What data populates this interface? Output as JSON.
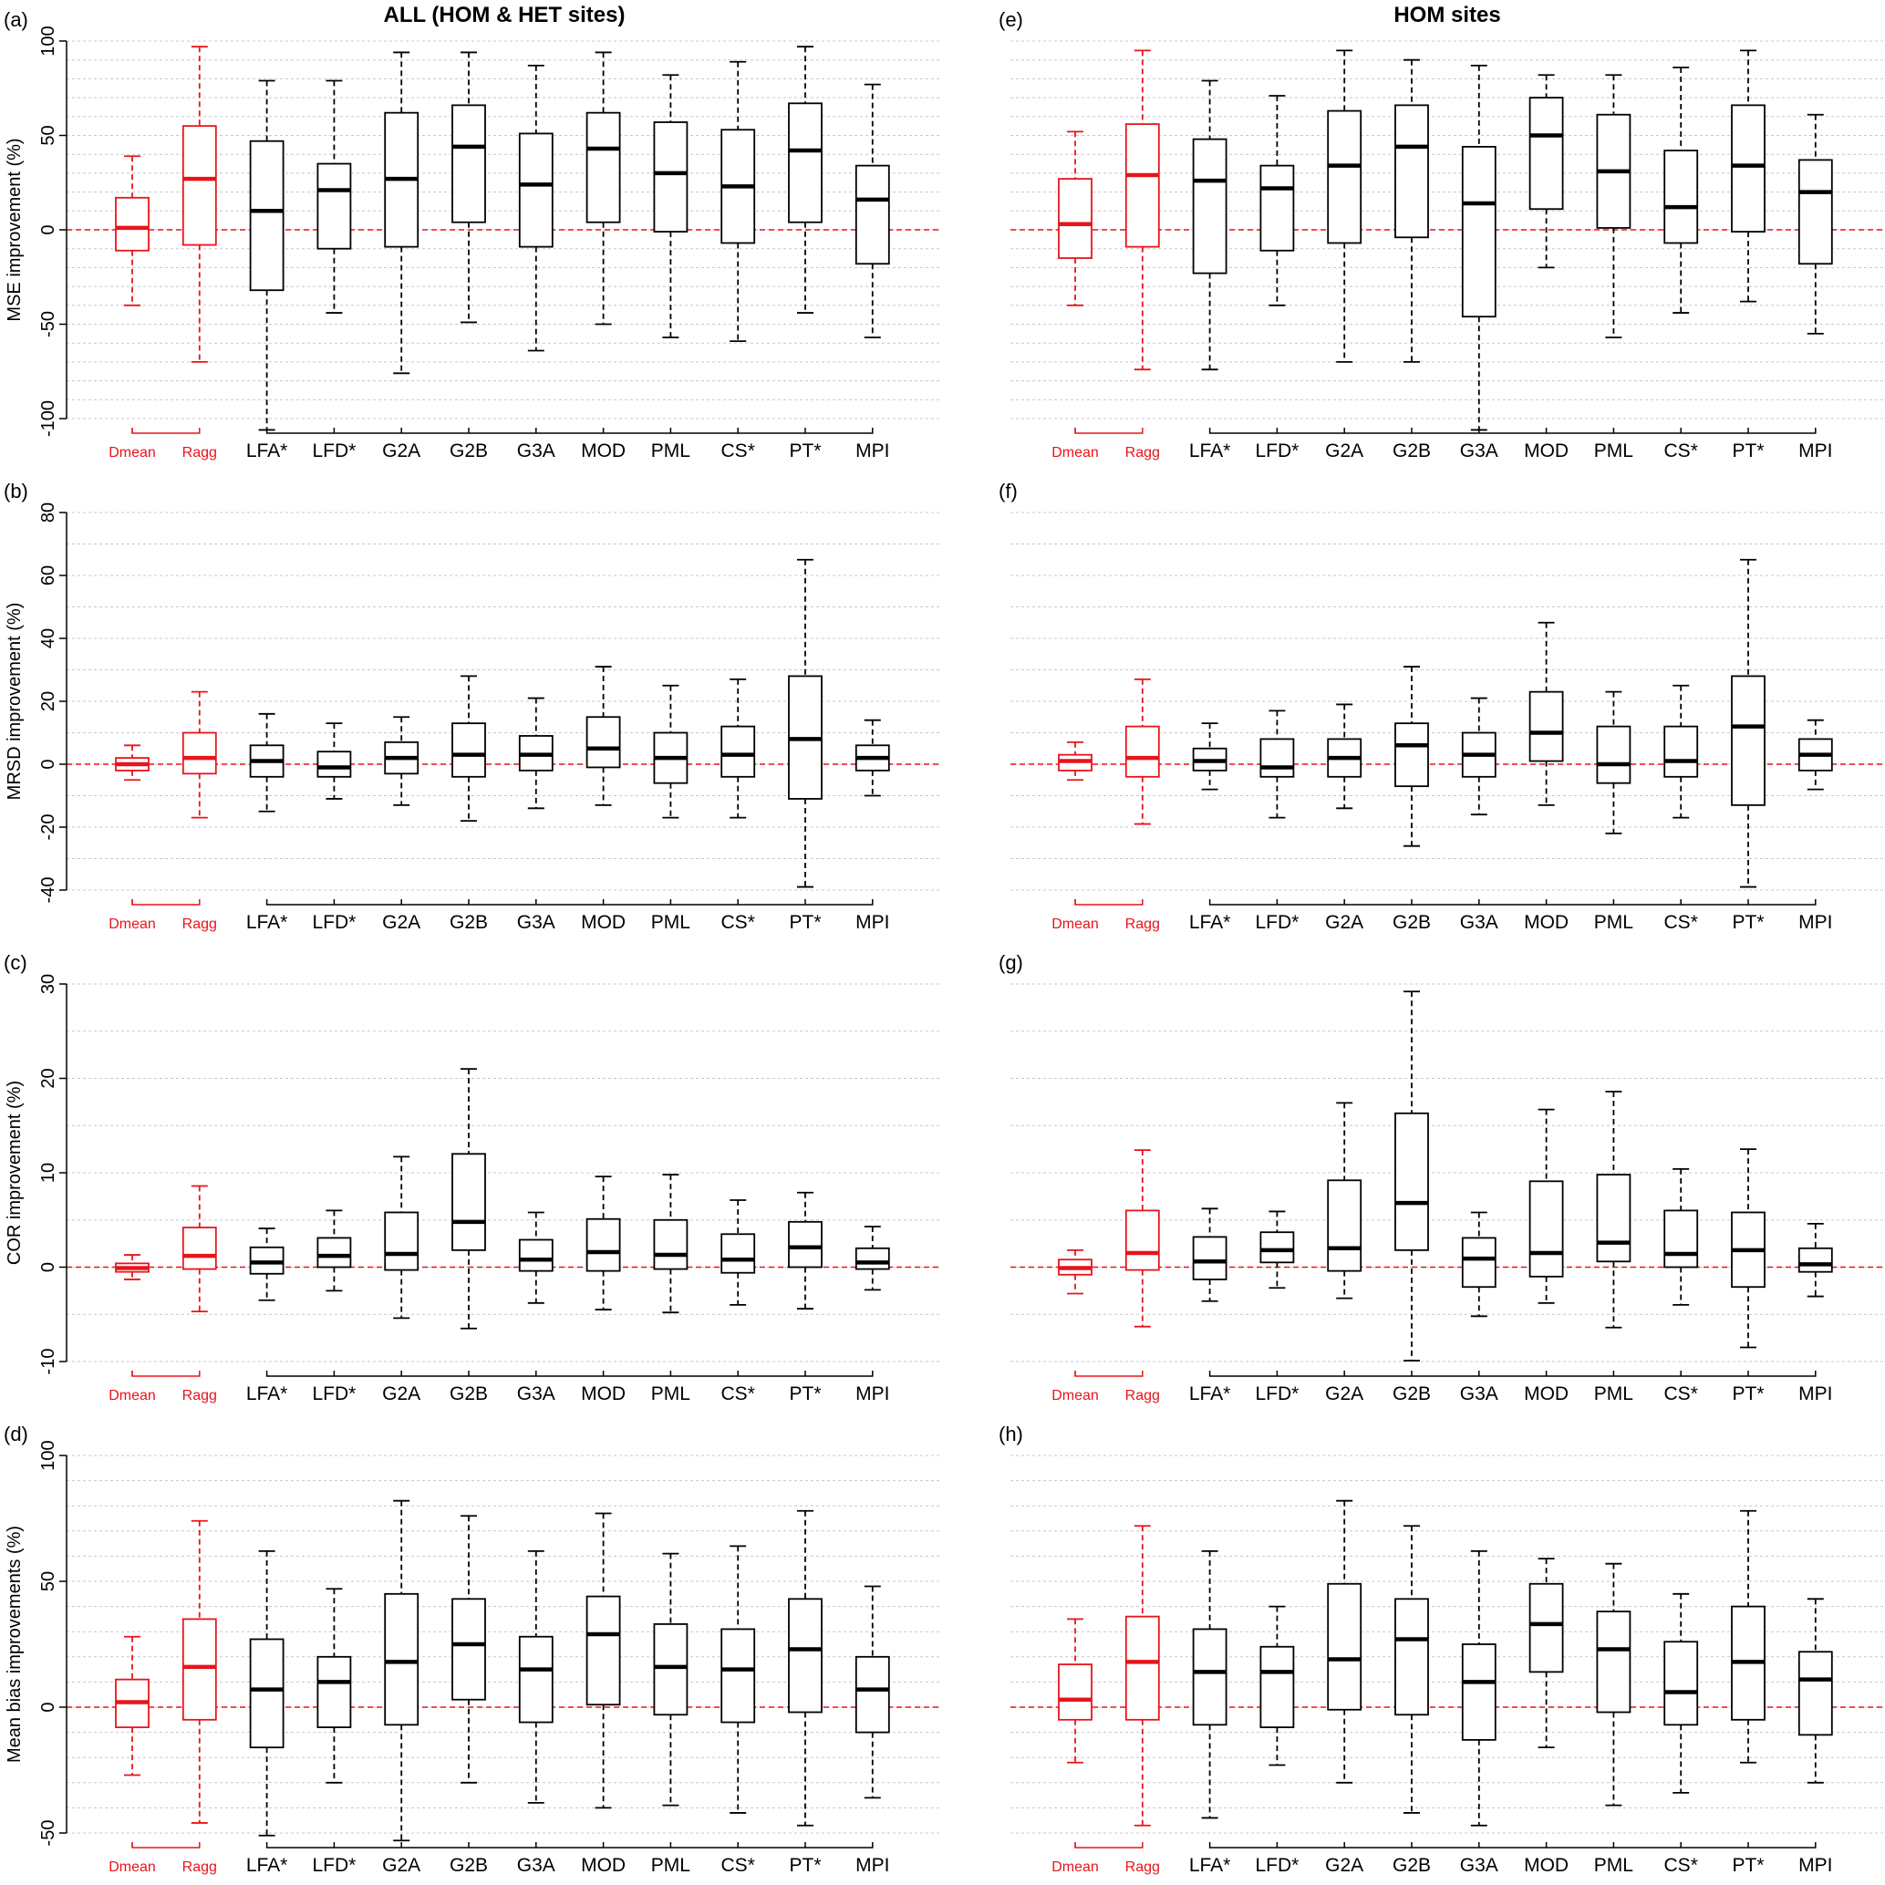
{
  "figure": {
    "left_title": "ALL (HOM & HET sites)",
    "right_title": "HOM sites",
    "colors": {
      "reference": "#e8141b",
      "method": "#000000",
      "zero_line": "#e8141b",
      "grid": "#c8c8c8"
    }
  },
  "chart_data": [
    {
      "panel": "(a)",
      "type": "boxplot",
      "ylabel": "MSE improvement (%)",
      "ylim": [
        -100,
        100
      ],
      "yticks": [
        -100,
        -50,
        0,
        50,
        100
      ],
      "grid": true,
      "reference_group": [
        "Dmean",
        "Ragg"
      ],
      "categories": [
        "Dmean",
        "Ragg",
        "LFA*",
        "LFD*",
        "G2A",
        "G2B",
        "G3A",
        "MOD",
        "PML",
        "CS*",
        "PT*",
        "MPI"
      ],
      "boxes": [
        {
          "min": -40,
          "q1": -11,
          "median": 1,
          "q3": 17,
          "max": 39
        },
        {
          "min": -70,
          "q1": -8,
          "median": 27,
          "q3": 55,
          "max": 97
        },
        {
          "min": -106,
          "q1": -32,
          "median": 10,
          "q3": 47,
          "max": 79
        },
        {
          "min": -44,
          "q1": -10,
          "median": 21,
          "q3": 35,
          "max": 79
        },
        {
          "min": -76,
          "q1": -9,
          "median": 27,
          "q3": 62,
          "max": 94
        },
        {
          "min": -49,
          "q1": 4,
          "median": 44,
          "q3": 66,
          "max": 94
        },
        {
          "min": -64,
          "q1": -9,
          "median": 24,
          "q3": 51,
          "max": 87
        },
        {
          "min": -50,
          "q1": 4,
          "median": 43,
          "q3": 62,
          "max": 94
        },
        {
          "min": -57,
          "q1": -1,
          "median": 30,
          "q3": 57,
          "max": 82
        },
        {
          "min": -59,
          "q1": -7,
          "median": 23,
          "q3": 53,
          "max": 89
        },
        {
          "min": -44,
          "q1": 4,
          "median": 42,
          "q3": 67,
          "max": 97
        },
        {
          "min": -57,
          "q1": -18,
          "median": 16,
          "q3": 34,
          "max": 77
        }
      ]
    },
    {
      "panel": "(b)",
      "type": "boxplot",
      "ylabel": "MRSD improvement (%)",
      "ylim": [
        -40,
        80
      ],
      "yticks": [
        -40,
        -20,
        0,
        20,
        40,
        60,
        80
      ],
      "grid": true,
      "reference_group": [
        "Dmean",
        "Ragg"
      ],
      "categories": [
        "Dmean",
        "Ragg",
        "LFA*",
        "LFD*",
        "G2A",
        "G2B",
        "G3A",
        "MOD",
        "PML",
        "CS*",
        "PT*",
        "MPI"
      ],
      "boxes": [
        {
          "min": -5,
          "q1": -2,
          "median": 0,
          "q3": 2,
          "max": 6
        },
        {
          "min": -17,
          "q1": -3,
          "median": 2,
          "q3": 10,
          "max": 23
        },
        {
          "min": -15,
          "q1": -4,
          "median": 1,
          "q3": 6,
          "max": 16
        },
        {
          "min": -11,
          "q1": -4,
          "median": -1,
          "q3": 4,
          "max": 13
        },
        {
          "min": -13,
          "q1": -3,
          "median": 2,
          "q3": 7,
          "max": 15
        },
        {
          "min": -18,
          "q1": -4,
          "median": 3,
          "q3": 13,
          "max": 28
        },
        {
          "min": -14,
          "q1": -2,
          "median": 3,
          "q3": 9,
          "max": 21
        },
        {
          "min": -13,
          "q1": -1,
          "median": 5,
          "q3": 15,
          "max": 31
        },
        {
          "min": -17,
          "q1": -6,
          "median": 2,
          "q3": 10,
          "max": 25
        },
        {
          "min": -17,
          "q1": -4,
          "median": 3,
          "q3": 12,
          "max": 27
        },
        {
          "min": -39,
          "q1": -11,
          "median": 8,
          "q3": 28,
          "max": 65
        },
        {
          "min": -10,
          "q1": -2,
          "median": 2,
          "q3": 6,
          "max": 14
        }
      ]
    },
    {
      "panel": "(c)",
      "type": "boxplot",
      "ylabel": "COR improvement (%)",
      "ylim": [
        -10,
        30
      ],
      "yticks": [
        -10,
        0,
        10,
        20,
        30
      ],
      "grid": true,
      "reference_group": [
        "Dmean",
        "Ragg"
      ],
      "categories": [
        "Dmean",
        "Ragg",
        "LFA*",
        "LFD*",
        "G2A",
        "G2B",
        "G3A",
        "MOD",
        "PML",
        "CS*",
        "PT*",
        "MPI"
      ],
      "boxes": [
        {
          "min": -1.3,
          "q1": -0.5,
          "median": -0.1,
          "q3": 0.4,
          "max": 1.3
        },
        {
          "min": -4.7,
          "q1": -0.2,
          "median": 1.2,
          "q3": 4.2,
          "max": 8.6
        },
        {
          "min": -3.5,
          "q1": -0.7,
          "median": 0.5,
          "q3": 2.1,
          "max": 4.1
        },
        {
          "min": -2.5,
          "q1": 0,
          "median": 1.2,
          "q3": 3.1,
          "max": 6
        },
        {
          "min": -5.4,
          "q1": -0.3,
          "median": 1.4,
          "q3": 5.8,
          "max": 11.7
        },
        {
          "min": -6.5,
          "q1": 1.8,
          "median": 4.8,
          "q3": 12,
          "max": 21
        },
        {
          "min": -3.8,
          "q1": -0.4,
          "median": 0.8,
          "q3": 2.9,
          "max": 5.8
        },
        {
          "min": -4.5,
          "q1": -0.4,
          "median": 1.6,
          "q3": 5.1,
          "max": 9.6
        },
        {
          "min": -4.8,
          "q1": -0.2,
          "median": 1.3,
          "q3": 5,
          "max": 9.8
        },
        {
          "min": -4,
          "q1": -0.6,
          "median": 0.8,
          "q3": 3.5,
          "max": 7.1
        },
        {
          "min": -4.4,
          "q1": 0,
          "median": 2.1,
          "q3": 4.8,
          "max": 7.9
        },
        {
          "min": -2.4,
          "q1": -0.2,
          "median": 0.5,
          "q3": 2,
          "max": 4.3
        }
      ]
    },
    {
      "panel": "(d)",
      "type": "boxplot",
      "ylabel": "Mean bias improvements (%)",
      "ylim": [
        -50,
        100
      ],
      "yticks": [
        -50,
        0,
        50,
        100
      ],
      "grid": true,
      "reference_group": [
        "Dmean",
        "Ragg"
      ],
      "categories": [
        "Dmean",
        "Ragg",
        "LFA*",
        "LFD*",
        "G2A",
        "G2B",
        "G3A",
        "MOD",
        "PML",
        "CS*",
        "PT*",
        "MPI"
      ],
      "boxes": [
        {
          "min": -27,
          "q1": -8,
          "median": 2,
          "q3": 11,
          "max": 28
        },
        {
          "min": -46,
          "q1": -5,
          "median": 16,
          "q3": 35,
          "max": 74
        },
        {
          "min": -51,
          "q1": -16,
          "median": 7,
          "q3": 27,
          "max": 62
        },
        {
          "min": -30,
          "q1": -8,
          "median": 10,
          "q3": 20,
          "max": 47
        },
        {
          "min": -53,
          "q1": -7,
          "median": 18,
          "q3": 45,
          "max": 82
        },
        {
          "min": -30,
          "q1": 3,
          "median": 25,
          "q3": 43,
          "max": 76
        },
        {
          "min": -38,
          "q1": -6,
          "median": 15,
          "q3": 28,
          "max": 62
        },
        {
          "min": -40,
          "q1": 1,
          "median": 29,
          "q3": 44,
          "max": 77
        },
        {
          "min": -39,
          "q1": -3,
          "median": 16,
          "q3": 33,
          "max": 61
        },
        {
          "min": -42,
          "q1": -6,
          "median": 15,
          "q3": 31,
          "max": 64
        },
        {
          "min": -47,
          "q1": -2,
          "median": 23,
          "q3": 43,
          "max": 78
        },
        {
          "min": -36,
          "q1": -10,
          "median": 7,
          "q3": 20,
          "max": 48
        }
      ]
    },
    {
      "panel": "(e)",
      "type": "boxplot",
      "ylabel": "",
      "ylim": [
        -100,
        100
      ],
      "yticks": [],
      "grid": true,
      "reference_group": [
        "Dmean",
        "Ragg"
      ],
      "categories": [
        "Dmean",
        "Ragg",
        "LFA*",
        "LFD*",
        "G2A",
        "G2B",
        "G3A",
        "MOD",
        "PML",
        "CS*",
        "PT*",
        "MPI"
      ],
      "boxes": [
        {
          "min": -40,
          "q1": -15,
          "median": 3,
          "q3": 27,
          "max": 52
        },
        {
          "min": -74,
          "q1": -9,
          "median": 29,
          "q3": 56,
          "max": 95
        },
        {
          "min": -74,
          "q1": -23,
          "median": 26,
          "q3": 48,
          "max": 79
        },
        {
          "min": -40,
          "q1": -11,
          "median": 22,
          "q3": 34,
          "max": 71
        },
        {
          "min": -70,
          "q1": -7,
          "median": 34,
          "q3": 63,
          "max": 95
        },
        {
          "min": -70,
          "q1": -4,
          "median": 44,
          "q3": 66,
          "max": 90
        },
        {
          "min": -106,
          "q1": -46,
          "median": 14,
          "q3": 44,
          "max": 87
        },
        {
          "min": -20,
          "q1": 11,
          "median": 50,
          "q3": 70,
          "max": 82
        },
        {
          "min": -57,
          "q1": 1,
          "median": 31,
          "q3": 61,
          "max": 82
        },
        {
          "min": -44,
          "q1": -7,
          "median": 12,
          "q3": 42,
          "max": 86
        },
        {
          "min": -38,
          "q1": -1,
          "median": 34,
          "q3": 66,
          "max": 95
        },
        {
          "min": -55,
          "q1": -18,
          "median": 20,
          "q3": 37,
          "max": 61
        }
      ]
    },
    {
      "panel": "(f)",
      "type": "boxplot",
      "ylabel": "",
      "ylim": [
        -40,
        80
      ],
      "yticks": [],
      "grid": true,
      "reference_group": [
        "Dmean",
        "Ragg"
      ],
      "categories": [
        "Dmean",
        "Ragg",
        "LFA*",
        "LFD*",
        "G2A",
        "G2B",
        "G3A",
        "MOD",
        "PML",
        "CS*",
        "PT*",
        "MPI"
      ],
      "boxes": [
        {
          "min": -5,
          "q1": -2,
          "median": 1,
          "q3": 3,
          "max": 7
        },
        {
          "min": -19,
          "q1": -4,
          "median": 2,
          "q3": 12,
          "max": 27
        },
        {
          "min": -8,
          "q1": -2,
          "median": 1,
          "q3": 5,
          "max": 13
        },
        {
          "min": -17,
          "q1": -4,
          "median": -1,
          "q3": 8,
          "max": 17
        },
        {
          "min": -14,
          "q1": -4,
          "median": 2,
          "q3": 8,
          "max": 19
        },
        {
          "min": -26,
          "q1": -7,
          "median": 6,
          "q3": 13,
          "max": 31
        },
        {
          "min": -16,
          "q1": -4,
          "median": 3,
          "q3": 10,
          "max": 21
        },
        {
          "min": -13,
          "q1": 1,
          "median": 10,
          "q3": 23,
          "max": 45
        },
        {
          "min": -22,
          "q1": -6,
          "median": 0,
          "q3": 12,
          "max": 23
        },
        {
          "min": -17,
          "q1": -4,
          "median": 1,
          "q3": 12,
          "max": 25
        },
        {
          "min": -39,
          "q1": -13,
          "median": 12,
          "q3": 28,
          "max": 65
        },
        {
          "min": -8,
          "q1": -2,
          "median": 3,
          "q3": 8,
          "max": 14
        }
      ]
    },
    {
      "panel": "(g)",
      "type": "boxplot",
      "ylabel": "",
      "ylim": [
        -10,
        30
      ],
      "yticks": [],
      "grid": true,
      "reference_group": [
        "Dmean",
        "Ragg"
      ],
      "categories": [
        "Dmean",
        "Ragg",
        "LFA*",
        "LFD*",
        "G2A",
        "G2B",
        "G3A",
        "MOD",
        "PML",
        "CS*",
        "PT*",
        "MPI"
      ],
      "boxes": [
        {
          "min": -2.8,
          "q1": -0.8,
          "median": -0.1,
          "q3": 0.8,
          "max": 1.8
        },
        {
          "min": -6.3,
          "q1": -0.3,
          "median": 1.5,
          "q3": 6,
          "max": 12.4
        },
        {
          "min": -3.6,
          "q1": -1.3,
          "median": 0.6,
          "q3": 3.2,
          "max": 6.2
        },
        {
          "min": -2.2,
          "q1": 0.5,
          "median": 1.8,
          "q3": 3.7,
          "max": 5.9
        },
        {
          "min": -3.3,
          "q1": -0.4,
          "median": 2,
          "q3": 9.2,
          "max": 17.4
        },
        {
          "min": -9.9,
          "q1": 1.8,
          "median": 6.8,
          "q3": 16.3,
          "max": 29.2
        },
        {
          "min": -5.2,
          "q1": -2.1,
          "median": 0.9,
          "q3": 3.1,
          "max": 5.8
        },
        {
          "min": -3.8,
          "q1": -1,
          "median": 1.5,
          "q3": 9.1,
          "max": 16.7
        },
        {
          "min": -6.4,
          "q1": 0.6,
          "median": 2.6,
          "q3": 9.8,
          "max": 18.6
        },
        {
          "min": -4,
          "q1": 0,
          "median": 1.4,
          "q3": 6,
          "max": 10.4
        },
        {
          "min": -8.5,
          "q1": -2.1,
          "median": 1.8,
          "q3": 5.8,
          "max": 12.5
        },
        {
          "min": -3.1,
          "q1": -0.5,
          "median": 0.3,
          "q3": 2,
          "max": 4.6
        }
      ]
    },
    {
      "panel": "(h)",
      "type": "boxplot",
      "ylabel": "",
      "ylim": [
        -50,
        100
      ],
      "yticks": [],
      "grid": true,
      "reference_group": [
        "Dmean",
        "Ragg"
      ],
      "categories": [
        "Dmean",
        "Ragg",
        "LFA*",
        "LFD*",
        "G2A",
        "G2B",
        "G3A",
        "MOD",
        "PML",
        "CS*",
        "PT*",
        "MPI"
      ],
      "boxes": [
        {
          "min": -22,
          "q1": -5,
          "median": 3,
          "q3": 17,
          "max": 35
        },
        {
          "min": -47,
          "q1": -5,
          "median": 18,
          "q3": 36,
          "max": 72
        },
        {
          "min": -44,
          "q1": -7,
          "median": 14,
          "q3": 31,
          "max": 62
        },
        {
          "min": -23,
          "q1": -8,
          "median": 14,
          "q3": 24,
          "max": 40
        },
        {
          "min": -30,
          "q1": -1,
          "median": 19,
          "q3": 49,
          "max": 82
        },
        {
          "min": -42,
          "q1": -3,
          "median": 27,
          "q3": 43,
          "max": 72
        },
        {
          "min": -47,
          "q1": -13,
          "median": 10,
          "q3": 25,
          "max": 62
        },
        {
          "min": -16,
          "q1": 14,
          "median": 33,
          "q3": 49,
          "max": 59
        },
        {
          "min": -39,
          "q1": -2,
          "median": 23,
          "q3": 38,
          "max": 57
        },
        {
          "min": -34,
          "q1": -7,
          "median": 6,
          "q3": 26,
          "max": 45
        },
        {
          "min": -22,
          "q1": -5,
          "median": 18,
          "q3": 40,
          "max": 78
        },
        {
          "min": -30,
          "q1": -11,
          "median": 11,
          "q3": 22,
          "max": 43
        }
      ]
    }
  ]
}
